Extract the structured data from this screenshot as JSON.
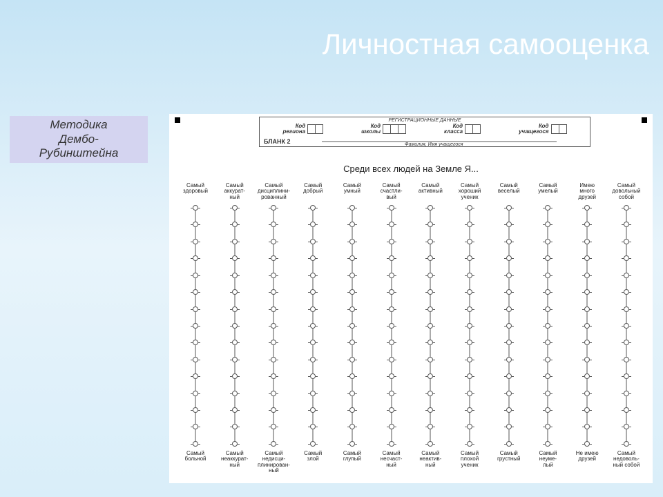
{
  "title": "Личностная самооценка",
  "method_box": "Методика\nДембо-\nРубинштейна",
  "reg": {
    "header": "РЕГИСТРАЦИОННЫЕ ДАННЫЕ",
    "fields": [
      {
        "label": "Код\nрегиона",
        "cells": 2
      },
      {
        "label": "Код\nшколы",
        "cells": 3
      },
      {
        "label": "Код\nкласса",
        "cells": 2
      },
      {
        "label": "Код\nучащегося",
        "cells": 2
      }
    ],
    "blank": "БЛАНК 2",
    "name_caption": "Фамилия, Имя учащегося"
  },
  "prompt": "Среди всех людей на Земле Я...",
  "ladder_rungs": 15,
  "scales": [
    {
      "top": "Самый\nздоровый",
      "bottom": "Самый\nбольной"
    },
    {
      "top": "Самый\nаккурат-\nный",
      "bottom": "Самый\nнеаккурат-\nный"
    },
    {
      "top": "Самый\nдисциплини-\nрованный",
      "bottom": "Самый\nнедисци-\nплинирован-\nный"
    },
    {
      "top": "Самый\nдобрый",
      "bottom": "Самый\nзлой"
    },
    {
      "top": "Самый\nумный",
      "bottom": "Самый\nглупый"
    },
    {
      "top": "Самый\nсчастли-\nвый",
      "bottom": "Самый\nнесчаст-\nный"
    },
    {
      "top": "Самый\nактивный",
      "bottom": "Самый\nнеактив-\nный"
    },
    {
      "top": "Самый\nхороший\nученик",
      "bottom": "Самый\nплохой\nученик"
    },
    {
      "top": "Самый\nвеселый",
      "bottom": "Самый\nгрустный"
    },
    {
      "top": "Самый\nумелый",
      "bottom": "Самый\nнеуме-\nлый"
    },
    {
      "top": "Имею\nмного\nдрузей",
      "bottom": "Не имею\nдрузей"
    },
    {
      "top": "Самый\nдовольный\nсобой",
      "bottom": "Самый\nнедоволь-\nный собой"
    }
  ],
  "colors": {
    "bg_gradient_top": "#c5e4f5",
    "bg_gradient_bottom": "#d9eef9",
    "title_color": "#ffffff",
    "method_box_bg": "#d4d4f0",
    "sheet_bg": "#ffffff",
    "line_color": "#555555"
  }
}
